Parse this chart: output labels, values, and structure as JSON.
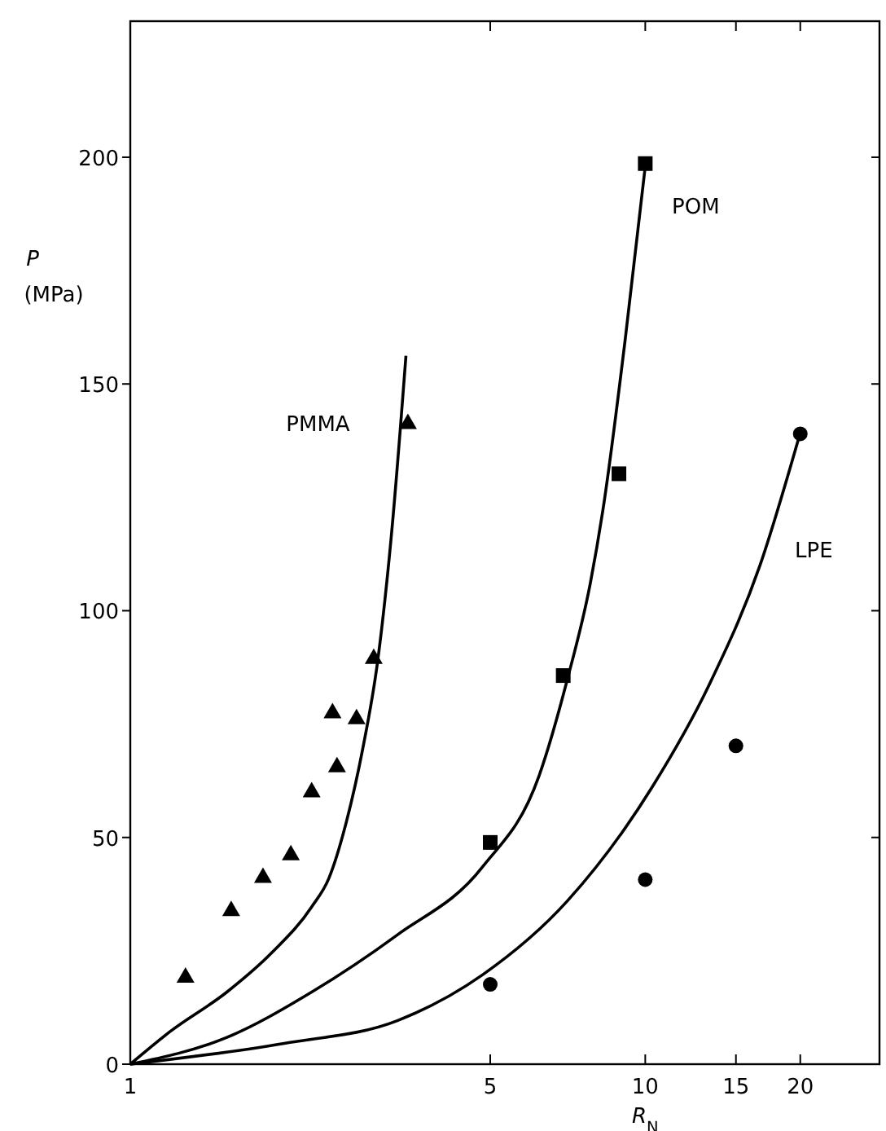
{
  "chart_data": {
    "type": "scatter",
    "xlabel": "R$_{N}$",
    "ylabel": "P (MPa)",
    "log": "x",
    "xlim": [
      1,
      28.5
    ],
    "ylim": [
      0,
      230
    ],
    "xticks": [
      1,
      5,
      10,
      15,
      20
    ],
    "yticks": [
      0,
      50,
      100,
      150,
      200
    ],
    "grid": false,
    "marker": "circle",
    "series": [
      {
        "marker": "triangle",
        "color": "#000000",
        "x": [
          1.28,
          1.57,
          1.81,
          2.05,
          2.25,
          2.47,
          2.52,
          2.75,
          2.97,
          3.46
        ],
        "values": [
          19.4,
          34.1,
          41.4,
          46.4,
          60.3,
          77.7,
          65.8,
          76.4,
          89.7,
          141.5
        ]
      },
      {
        "type": "line",
        "name": "PMMA",
        "marker": "none",
        "color": "#000000",
        "x": [
          1,
          1.195,
          1.54,
          1.887,
          2.25,
          2.43,
          2.63,
          2.83,
          3.02,
          3.21,
          3.43
        ],
        "values": [
          0,
          7.2,
          15.9,
          24.7,
          34.7,
          41,
          53.6,
          69.8,
          88.6,
          116,
          156.2
        ]
      },
      {
        "marker": "square",
        "color": "#000000",
        "x": [
          5,
          6.93,
          8.89,
          10
        ],
        "values": [
          48.9,
          85.7,
          130.2,
          198.6
        ]
      },
      {
        "type": "line",
        "name": "POM",
        "marker": "none",
        "color": "#000000",
        "x": [
          1,
          1.54,
          2.25,
          3.3,
          4.83,
          6.22,
          7.06,
          7.82,
          8.27,
          9.14,
          10
        ],
        "values": [
          0,
          5.9,
          15.9,
          28.5,
          43.5,
          63.6,
          84.9,
          106,
          122,
          159.7,
          198
        ]
      },
      {
        "color": "#000000",
        "x": [
          5,
          10,
          15,
          20
        ],
        "values": [
          17.6,
          40.7,
          70.2,
          139
        ]
      },
      {
        "type": "line",
        "name": "LPE",
        "marker": "none",
        "color": "#000000",
        "x": [
          1,
          1.99,
          3.3,
          4.83,
          7.06,
          10.3,
          13.3,
          16.7,
          19.9
        ],
        "values": [
          0,
          4.6,
          9.6,
          19.7,
          36,
          61,
          83.6,
          110,
          138.4
        ]
      }
    ]
  }
}
